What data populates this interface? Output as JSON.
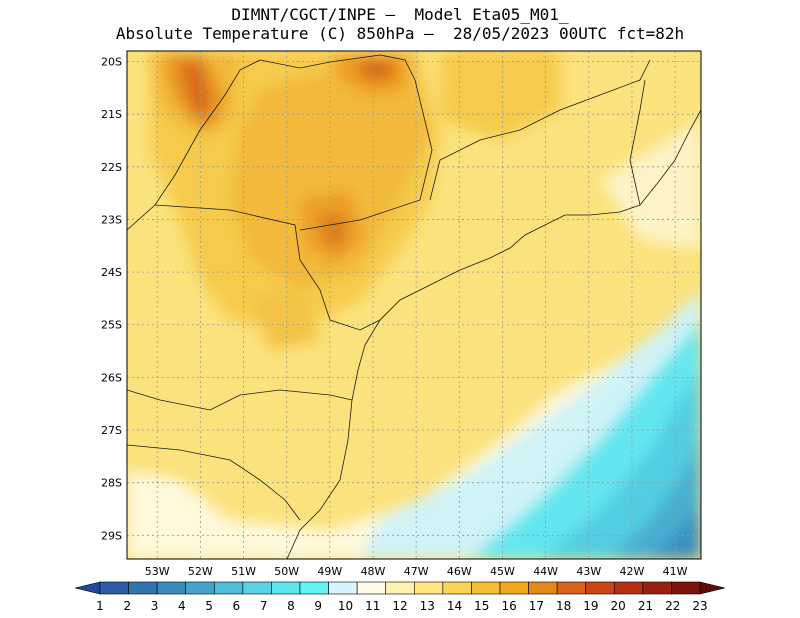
{
  "title_line1": "DIMNT/CGCT/INPE –  Model Eta05_M01_",
  "title_line2": "Absolute Temperature (C) 850hPa –  28/05/2023 00UTC fct=82h",
  "map": {
    "lon_range": [
      -53.7,
      -40.4
    ],
    "lat_range": [
      -29.45,
      -19.8
    ],
    "lat_ticks": [
      "20S",
      "21S",
      "22S",
      "23S",
      "24S",
      "25S",
      "26S",
      "27S",
      "28S",
      "29S"
    ],
    "lat_values": [
      -20,
      -21,
      -22,
      -23,
      -24,
      -25,
      -26,
      -27,
      -28,
      -29
    ],
    "lon_ticks": [
      "53W",
      "52W",
      "51W",
      "50W",
      "49W",
      "48W",
      "47W",
      "46W",
      "45W",
      "44W",
      "43W",
      "42W",
      "41W"
    ],
    "lon_values": [
      -53,
      -52,
      -51,
      -50,
      -49,
      -48,
      -47,
      -46,
      -45,
      -44,
      -43,
      -42,
      -41
    ],
    "grid": true
  },
  "colorbar": {
    "labels": [
      "1",
      "2",
      "3",
      "4",
      "5",
      "6",
      "7",
      "8",
      "9",
      "10",
      "11",
      "12",
      "13",
      "14",
      "15",
      "16",
      "17",
      "18",
      "19",
      "20",
      "21",
      "22",
      "23"
    ],
    "colors": [
      "#23479a",
      "#2c5da6",
      "#3274b0",
      "#3b8bbd",
      "#47a3cc",
      "#4fbcd9",
      "#5bd1e6",
      "#5fe3ef",
      "#63f3f7",
      "#d8f4fb",
      "#fffbe6",
      "#fff2b0",
      "#ffe480",
      "#f9d35a",
      "#f5bf3a",
      "#f0a81d",
      "#e5881c",
      "#d8631a",
      "#c94716",
      "#b33113",
      "#9a2010",
      "#7d140c",
      "#5c0a08"
    ]
  }
}
